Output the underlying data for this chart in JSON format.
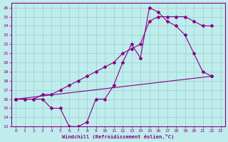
{
  "xlabel": "Windchill (Refroidissement éolien,°C)",
  "bg_color": "#c0ecec",
  "grid_color": "#9ed8d8",
  "line_color": "#880088",
  "xlim": [
    -0.5,
    23.5
  ],
  "ylim": [
    13,
    26.5
  ],
  "xticks": [
    0,
    1,
    2,
    3,
    4,
    5,
    6,
    7,
    8,
    9,
    10,
    11,
    12,
    13,
    14,
    15,
    16,
    17,
    18,
    19,
    20,
    21,
    22,
    23
  ],
  "yticks": [
    13,
    14,
    15,
    16,
    17,
    18,
    19,
    20,
    21,
    22,
    23,
    24,
    25,
    26
  ],
  "curve1_x": [
    0,
    1,
    2,
    3,
    4,
    5,
    6,
    7,
    8,
    9,
    10,
    11,
    12,
    13,
    14,
    15,
    16,
    17,
    18,
    19,
    20,
    21,
    22
  ],
  "curve1_y": [
    16,
    16,
    16,
    16,
    15,
    15,
    13,
    13,
    13.5,
    16,
    16,
    17.5,
    20,
    22,
    20.5,
    26,
    25.5,
    24.5,
    24,
    23,
    21,
    19,
    18.5
  ],
  "curve2_x": [
    0,
    1,
    2,
    3,
    4,
    5,
    6,
    7,
    8,
    9,
    10,
    11,
    12,
    13,
    14,
    15,
    16,
    17,
    18,
    19,
    20,
    21,
    22
  ],
  "curve2_y": [
    16,
    16,
    16,
    16.5,
    16.5,
    17,
    17.5,
    18,
    18.5,
    19,
    19.5,
    20,
    21,
    21.5,
    22,
    24.5,
    25,
    25,
    25,
    25,
    24.5,
    24,
    24
  ],
  "curve3_x": [
    0,
    22
  ],
  "curve3_y": [
    16,
    18.5
  ]
}
